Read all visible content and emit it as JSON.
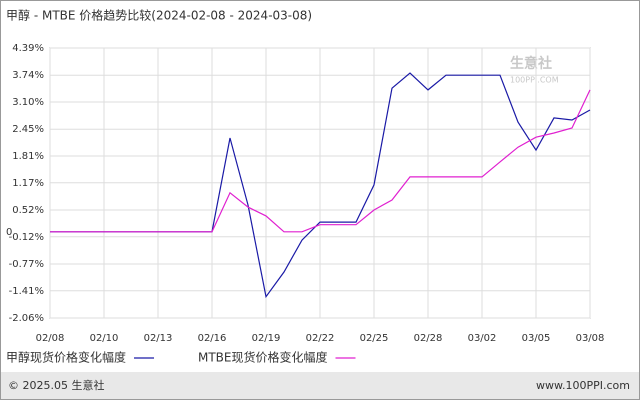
{
  "chart_data": {
    "type": "line",
    "title": "甲醇 - MTBE 价格趋势比较(2024-02-08 - 2024-03-08)",
    "categories": [
      "02/08",
      null,
      null,
      "02/10",
      null,
      null,
      "02/13",
      null,
      null,
      "02/16",
      null,
      null,
      "02/19",
      null,
      null,
      "02/22",
      null,
      null,
      "02/25",
      null,
      null,
      "02/28",
      null,
      null,
      "03/02",
      null,
      null,
      "03/05",
      null,
      null,
      "03/08"
    ],
    "series": [
      {
        "name": "甲醇现货价格变化幅度",
        "color": "#1a1aa6",
        "values": [
          0,
          0,
          0,
          0,
          0,
          0,
          0,
          0,
          0,
          0,
          2.24,
          0.64,
          -1.55,
          -0.96,
          -0.2,
          0.23,
          0.23,
          0.23,
          1.12,
          3.43,
          3.79,
          3.39,
          3.74,
          3.74,
          3.74,
          3.74,
          2.62,
          1.95,
          2.72,
          2.67,
          2.91
        ]
      },
      {
        "name": "MTBE现货价格变化幅度",
        "color": "#e020d0",
        "values": [
          0,
          0,
          0,
          0,
          0,
          0,
          0,
          0,
          0,
          0,
          0.93,
          0.59,
          0.38,
          0,
          0,
          0.17,
          0.17,
          0.17,
          0.52,
          0.76,
          1.31,
          1.31,
          1.31,
          1.31,
          1.31,
          1.67,
          2.02,
          2.26,
          2.36,
          2.48,
          3.39
        ]
      }
    ],
    "ylim": [
      -2.06,
      4.39
    ],
    "yticks": [
      {
        "value": 4.39,
        "label": "4.39%"
      },
      {
        "value": 3.74,
        "label": "3.74%"
      },
      {
        "value": 3.1,
        "label": "3.10%"
      },
      {
        "value": 2.45,
        "label": "2.45%"
      },
      {
        "value": 1.81,
        "label": "1.81%"
      },
      {
        "value": 1.17,
        "label": "1.17%"
      },
      {
        "value": 0.52,
        "label": "0.52%"
      },
      {
        "value": 0,
        "label": "0"
      },
      {
        "value": -0.12,
        "label": "-0.12%"
      },
      {
        "value": -0.77,
        "label": "-0.77%"
      },
      {
        "value": -1.41,
        "label": "-1.41%"
      },
      {
        "value": -2.06,
        "label": "-2.06%"
      }
    ],
    "grid": true,
    "watermark": {
      "name": "生意社",
      "url": "100PPI.COM"
    },
    "footer": {
      "copyright": "© 2025.05 生意社",
      "site": "www.100PPI.com"
    }
  }
}
